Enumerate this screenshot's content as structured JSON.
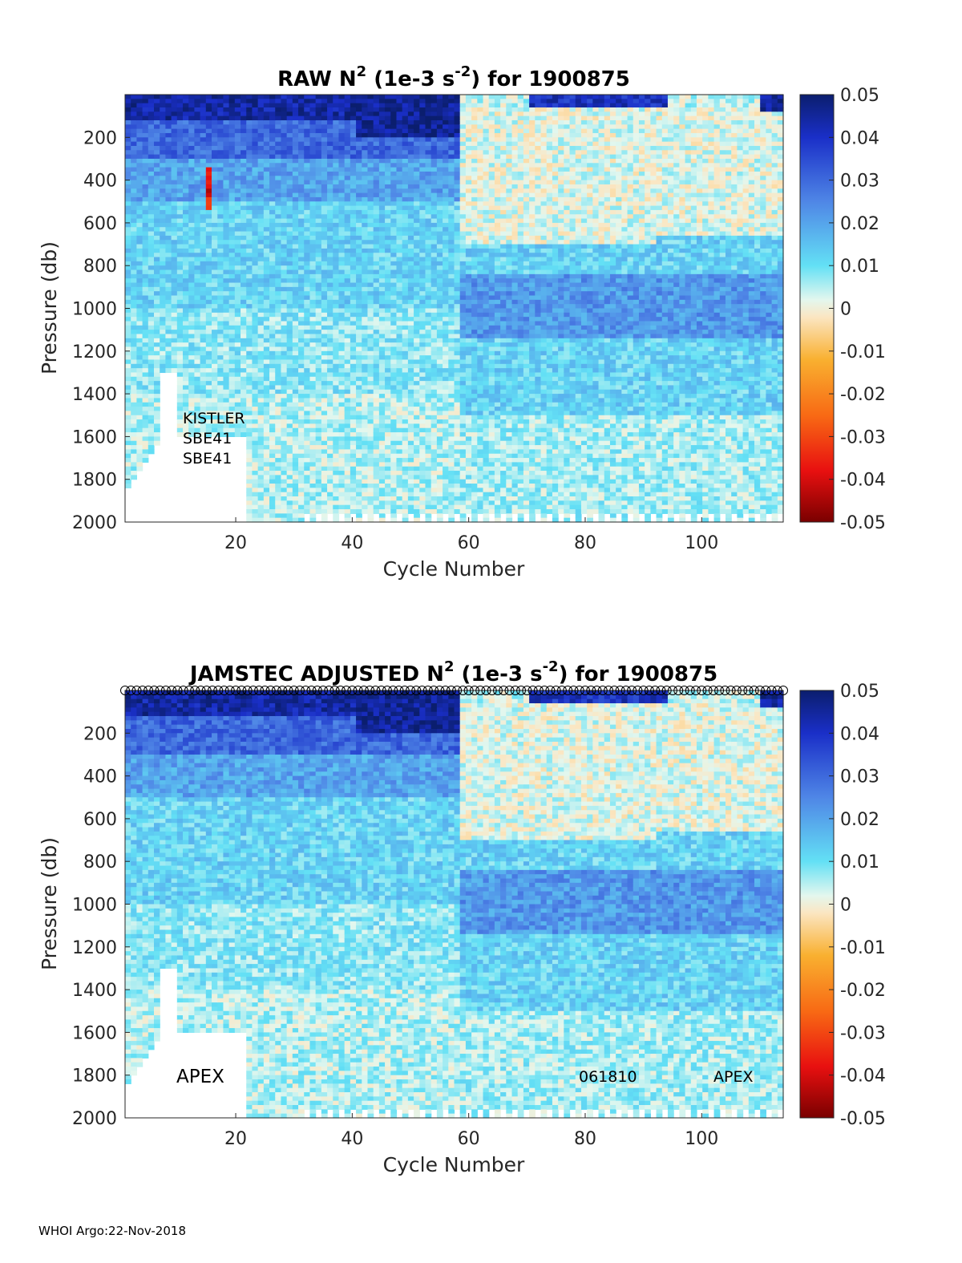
{
  "footer": "WHOI Argo:22-Nov-2018",
  "chart_data": [
    {
      "type": "heatmap",
      "title": "RAW N2 (1e-3 s-2) for 1900875",
      "title_parts": {
        "prefix": "RAW N",
        "sup1": "2",
        "mid": " (1e-3 s",
        "sup2": "-2",
        "suffix": ") for 1900875"
      },
      "xlabel": "Cycle Number",
      "ylabel": "Pressure (db)",
      "xlim": [
        1,
        114
      ],
      "ylim": [
        2000,
        0
      ],
      "xticks": [
        20,
        40,
        60,
        80,
        100
      ],
      "yticks": [
        200,
        400,
        600,
        800,
        1000,
        1200,
        1400,
        1600,
        1800,
        2000
      ],
      "colorbar": {
        "min": -0.05,
        "max": 0.05,
        "ticks": [
          "0.05",
          "0.04",
          "0.03",
          "0.02",
          "0.01",
          "0",
          "-0.01",
          "-0.02",
          "-0.03",
          "-0.04",
          "-0.05"
        ]
      },
      "annotations": [
        "KISTLER",
        "SBE41",
        "SBE41"
      ],
      "markers_row": false
    },
    {
      "type": "heatmap",
      "title": "JAMSTEC  ADJUSTED N2 (1e-3 s-2) for 1900875",
      "title_parts": {
        "prefix": "JAMSTEC  ADJUSTED N",
        "sup1": "2",
        "mid": " (1e-3 s",
        "sup2": "-2",
        "suffix": ") for 1900875"
      },
      "xlabel": "Cycle Number",
      "ylabel": "Pressure (db)",
      "xlim": [
        1,
        114
      ],
      "ylim": [
        2000,
        0
      ],
      "xticks": [
        20,
        40,
        60,
        80,
        100
      ],
      "yticks": [
        200,
        400,
        600,
        800,
        1000,
        1200,
        1400,
        1600,
        1800,
        2000
      ],
      "colorbar": {
        "min": -0.05,
        "max": 0.05,
        "ticks": [
          "0.05",
          "0.04",
          "0.03",
          "0.02",
          "0.01",
          "0",
          "-0.01",
          "-0.02",
          "-0.03",
          "-0.04",
          "-0.05"
        ]
      },
      "annotations": [
        "APEX",
        "061810",
        "APEX"
      ],
      "markers_row": true
    }
  ]
}
